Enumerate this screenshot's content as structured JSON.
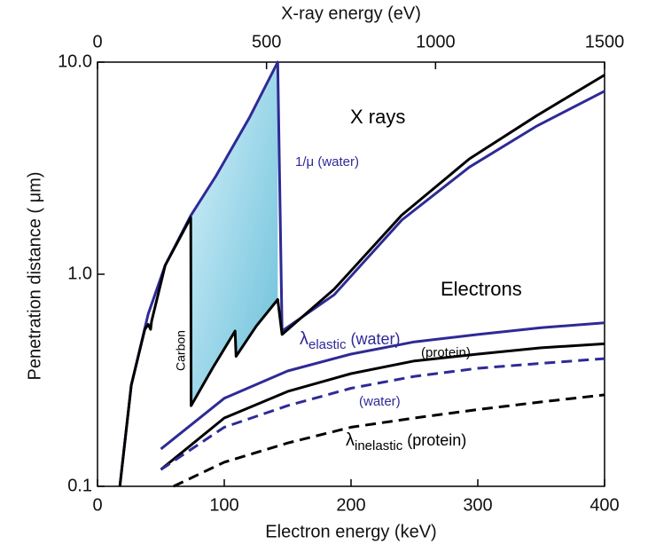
{
  "chart_data": {
    "type": "line",
    "x_label": "Electron energy (keV)",
    "x2_label": "X-ray energy (eV)",
    "y_label": "Penetration distance (   μm)",
    "xlim": [
      0,
      400
    ],
    "xticks": [
      0,
      100,
      200,
      300,
      400
    ],
    "x2lim": [
      0,
      1500
    ],
    "x2ticks": [
      0,
      500,
      1000,
      1500
    ],
    "ylim": [
      0.1,
      10
    ],
    "yscale": "log",
    "yticks": [
      0.1,
      {
        "value": 1,
        "label": "1.0"
      },
      {
        "value": 10,
        "label": "10.0"
      }
    ],
    "series": [
      {
        "color": "#2e2a96",
        "axis": "x2",
        "x": [
          66,
          100,
          150,
          200,
          276,
          350,
          450,
          533,
          546,
          700,
          900,
          1100,
          1300,
          1500
        ],
        "values": [
          0.1,
          0.3,
          0.65,
          1.1,
          1.89,
          2.9,
          5.5,
          10,
          0.54,
          0.8,
          1.8,
          3.2,
          5.0,
          7.3
        ]
      },
      {
        "color": "#000000",
        "axis": "x2",
        "x": [
          66,
          100,
          140,
          150,
          157,
          160,
          200,
          276,
          277,
          340,
          407,
          410,
          470,
          533,
          546,
          700,
          900,
          1100,
          1300,
          1500
        ],
        "values": [
          0.1,
          0.3,
          0.55,
          0.58,
          0.55,
          0.6,
          1.1,
          1.85,
          0.24,
          0.36,
          0.54,
          0.41,
          0.57,
          0.76,
          0.52,
          0.85,
          1.9,
          3.5,
          5.6,
          8.7
        ]
      },
      {
        "color": "#2e2a96",
        "dash": false,
        "x": [
          50,
          100,
          150,
          200,
          250,
          300,
          350,
          400
        ],
        "values": [
          0.15,
          0.26,
          0.35,
          0.42,
          0.48,
          0.52,
          0.56,
          0.59
        ]
      },
      {
        "color": "#000000",
        "dash": false,
        "x": [
          50,
          100,
          150,
          200,
          250,
          300,
          350,
          400
        ],
        "values": [
          0.12,
          0.21,
          0.28,
          0.34,
          0.39,
          0.42,
          0.45,
          0.47
        ]
      },
      {
        "color": "#2e2a96",
        "dash": true,
        "x": [
          50,
          100,
          150,
          200,
          250,
          300,
          350,
          400
        ],
        "values": [
          0.12,
          0.19,
          0.24,
          0.29,
          0.33,
          0.36,
          0.38,
          0.4
        ]
      },
      {
        "color": "#000000",
        "dash": true,
        "x": [
          60,
          100,
          150,
          200,
          250,
          300,
          350,
          400
        ],
        "values": [
          0.1,
          0.13,
          0.16,
          0.19,
          0.21,
          0.23,
          0.25,
          0.27
        ]
      }
    ],
    "annotations": [
      {
        "text": "X rays"
      },
      {
        "text": "1/μ (water)"
      },
      {
        "text": "Electrons"
      },
      {
        "text": "λ",
        "sub": "elastic",
        "suffix": "(water)"
      },
      {
        "text": "(protein)"
      },
      {
        "text": "(water)"
      },
      {
        "text": "λ",
        "sub": "inelastic",
        "suffix": "(protein)"
      },
      {
        "text": "Carbon"
      }
    ]
  }
}
